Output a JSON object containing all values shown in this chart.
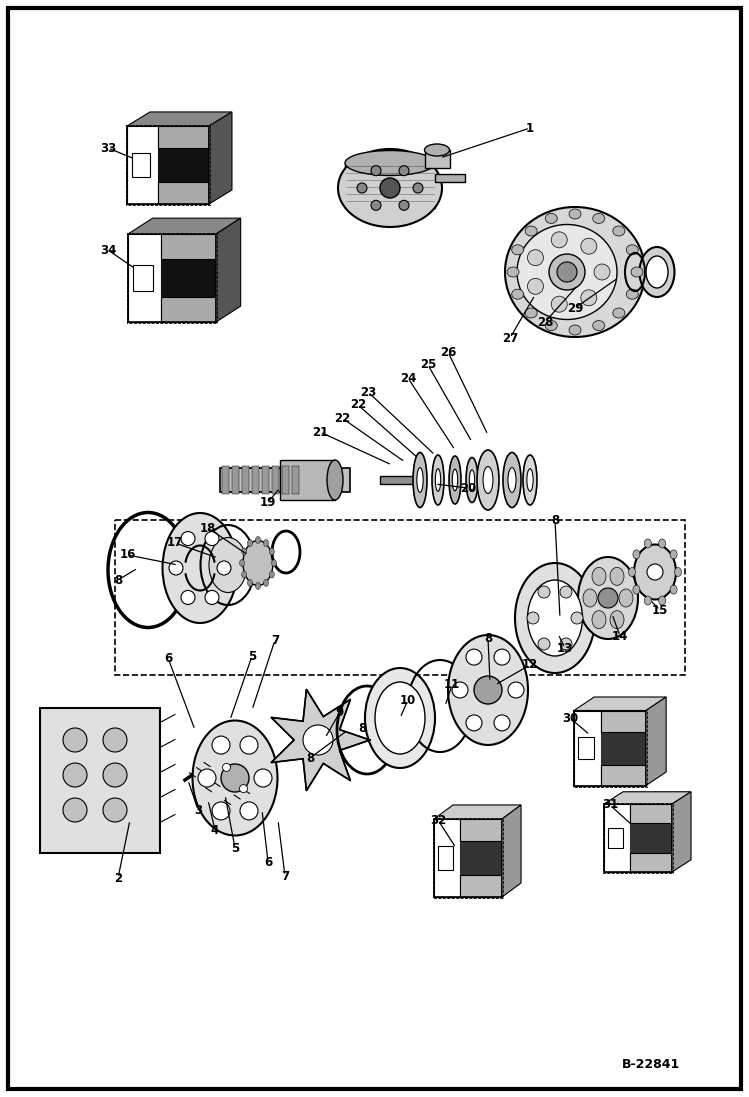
{
  "background_color": "#ffffff",
  "border_color": "#000000",
  "diagram_code": "B-22841",
  "figure_width": 7.49,
  "figure_height": 10.97,
  "dpi": 100
}
